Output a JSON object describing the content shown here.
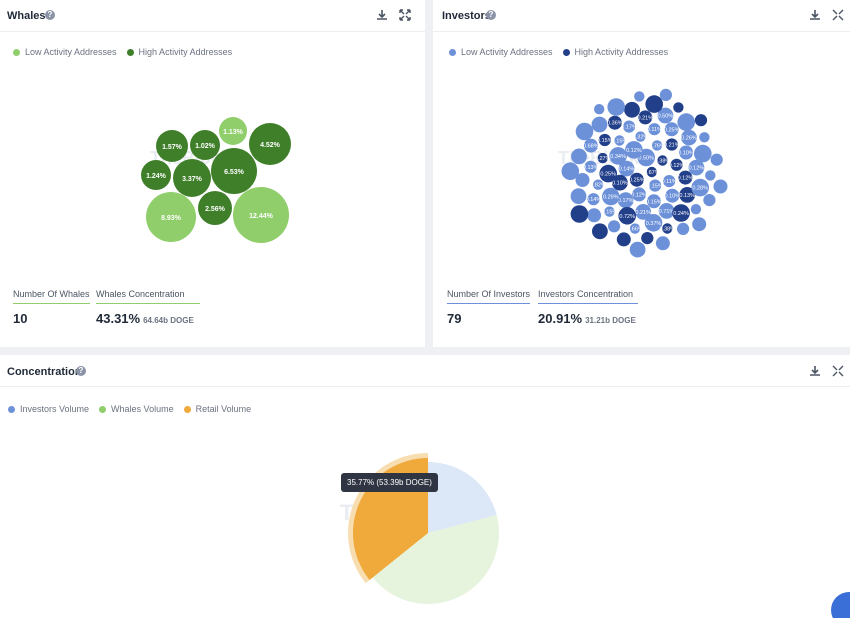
{
  "whales": {
    "title": "Whales",
    "legend": [
      {
        "label": "Low Activity Addresses",
        "color": "#8fce6b"
      },
      {
        "label": "High Activity Addresses",
        "color": "#3f7f2a"
      }
    ],
    "bubbles": [
      {
        "label": "1.13%",
        "activity": "low"
      },
      {
        "label": "1.57%",
        "activity": "high"
      },
      {
        "label": "1.02%",
        "activity": "high"
      },
      {
        "label": "4.52%",
        "activity": "high"
      },
      {
        "label": "1.24%",
        "activity": "high"
      },
      {
        "label": "3.37%",
        "activity": "high"
      },
      {
        "label": "6.53%",
        "activity": "high"
      },
      {
        "label": "8.93%",
        "activity": "low"
      },
      {
        "label": "2.56%",
        "activity": "high"
      },
      {
        "label": "12.44%",
        "activity": "low"
      }
    ],
    "count_label": "Number Of Whales",
    "count_value": "10",
    "concentration_label": "Whales Concentration",
    "concentration_value": "43.31%",
    "concentration_sub": "64.64b DOGE",
    "icons": [
      "help-icon",
      "download-icon",
      "expand-icon"
    ]
  },
  "investors": {
    "title": "Investors",
    "legend": [
      {
        "label": "Low Activity Addresses",
        "color": "#6d91d9"
      },
      {
        "label": "High Activity Addresses",
        "color": "#223f8a"
      }
    ],
    "bubble_labels": [
      "0.67%",
      "0.25%",
      "0.50%",
      "0.15%",
      "0.14%",
      "0.38%",
      "0.12%",
      "0.12%",
      "0.11%",
      "0.10%",
      "0.76%",
      "0.15%",
      "0.34%",
      "0.12%",
      "0.17%",
      "0.32%",
      "0.10%",
      "0.25%",
      "0.21%",
      "0.21%",
      "0.15%",
      "0.12%",
      "0.29%",
      "0.11%",
      "0.71%",
      "0.27%",
      "0.10%",
      "0.72%",
      "0.17%",
      "0.13%",
      "0.82%",
      "0.25%",
      "0.37%",
      "0.15%",
      "0.12%",
      "0.15%",
      "0.21%",
      "0.24%",
      "0.13%",
      "0.26%",
      "0.66%",
      "0.36%",
      "0.28%",
      "0.14%",
      "0.50%",
      "0.38%",
      "0.68%"
    ],
    "count_label": "Number Of Investors",
    "count_value": "79",
    "concentration_label": "Investors Concentration",
    "concentration_value": "20.91%",
    "concentration_sub": "31.21b DOGE",
    "icons": [
      "help-icon",
      "download-icon",
      "expand-icon"
    ]
  },
  "concentration": {
    "title": "Concentration",
    "legend": [
      {
        "label": "Investors Volume",
        "color": "#6d91d9"
      },
      {
        "label": "Whales Volume",
        "color": "#8fce6b"
      },
      {
        "label": "Retail Volume",
        "color": "#f0a93b"
      }
    ],
    "tooltip": "35.77% (53.39b DOGE)",
    "icons": [
      "help-icon",
      "download-icon",
      "expand-icon"
    ]
  },
  "watermark": "TheBlock",
  "chart_data": {
    "type": "pie",
    "labels": [
      "Investors Volume",
      "Whales Volume",
      "Retail Volume"
    ],
    "values": [
      20.91,
      43.31,
      35.77
    ],
    "colors": [
      "#dce7f8",
      "#e6f3dd",
      "#f0a93b"
    ],
    "highlighted": "Retail Volume"
  }
}
